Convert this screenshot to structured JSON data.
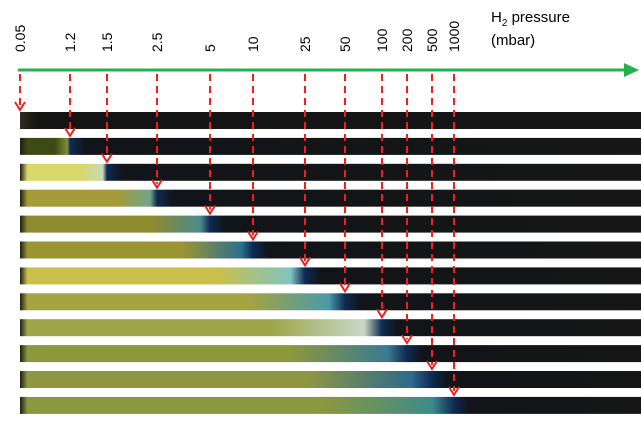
{
  "axis": {
    "name_prefix": "H",
    "name_subscript": "2",
    "name_suffix": " pressure",
    "unit": "(mbar)",
    "arrow_color": "#22b24c"
  },
  "pressures": [
    "0.05",
    "1.2",
    "1.5",
    "2.5",
    "5",
    "10",
    "25",
    "50",
    "100",
    "200",
    "500",
    "1000"
  ],
  "marker_color": "#e8231f",
  "strips": [
    {
      "pressure": "0.05",
      "switched_fraction": 0.0,
      "colors": [
        "#4a4a1a",
        "#4a4a1a"
      ]
    },
    {
      "pressure": "1.2",
      "switched_fraction": 0.08,
      "colors": [
        "#3e4a16",
        "#7d8d3a"
      ]
    },
    {
      "pressure": "1.5",
      "switched_fraction": 0.14,
      "colors": [
        "#d9d86a",
        "#c9d9b8"
      ]
    },
    {
      "pressure": "2.5",
      "switched_fraction": 0.23,
      "colors": [
        "#a69a36",
        "#6fa58a"
      ]
    },
    {
      "pressure": "5",
      "switched_fraction": 0.31,
      "colors": [
        "#8d8a30",
        "#4b8a8e"
      ]
    },
    {
      "pressure": "10",
      "switched_fraction": 0.38,
      "colors": [
        "#9a9433",
        "#2b6f8f"
      ]
    },
    {
      "pressure": "25",
      "switched_fraction": 0.46,
      "colors": [
        "#c8c04a",
        "#7fc4c2"
      ]
    },
    {
      "pressure": "50",
      "switched_fraction": 0.52,
      "colors": [
        "#a5a43e",
        "#4a9aa8"
      ]
    },
    {
      "pressure": "100",
      "switched_fraction": 0.57,
      "colors": [
        "#9ea64a",
        "#c7d9c8"
      ]
    },
    {
      "pressure": "200",
      "switched_fraction": 0.61,
      "colors": [
        "#8c983c",
        "#3a7a90"
      ]
    },
    {
      "pressure": "500",
      "switched_fraction": 0.65,
      "colors": [
        "#8e9640",
        "#2e6a8c"
      ]
    },
    {
      "pressure": "1000",
      "switched_fraction": 0.69,
      "colors": [
        "#8a983e",
        "#3d8a8a"
      ]
    }
  ]
}
